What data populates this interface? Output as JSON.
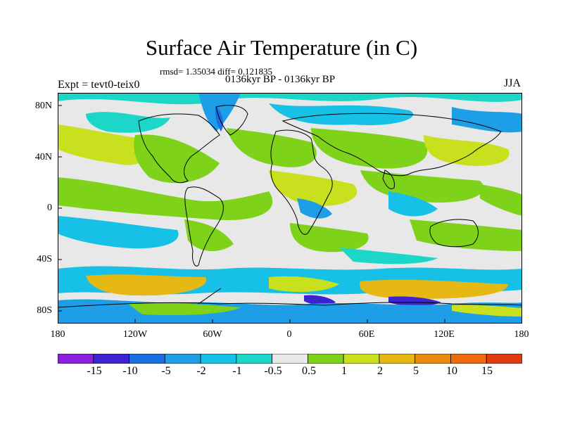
{
  "figure": {
    "title": "Surface Air Temperature (in C)",
    "stats_line": "rmsd= 1.35034 diff= 0.121835",
    "period_line": "0136kyr BP - 0136kyr BP",
    "expt_label": "Expt = tevt0-teix0",
    "season": "JJA"
  },
  "axes": {
    "x_ticks": [
      "180",
      "120W",
      "60W",
      "0",
      "60E",
      "120E",
      "180"
    ],
    "y_ticks": [
      "80N",
      "40N",
      "0",
      "40S",
      "80S"
    ]
  },
  "colorbar": {
    "colors": [
      "#8b1fe0",
      "#3c24d0",
      "#1c6ee0",
      "#1e9ee6",
      "#16c0e6",
      "#1cd6c8",
      "#e8e8e8",
      "#7ed21a",
      "#c8e01e",
      "#e6b814",
      "#ee8a0e",
      "#ee6a0e",
      "#e03a10"
    ],
    "labels": [
      "-15",
      "-10",
      "-5",
      "-2",
      "-1",
      "-0.5",
      "0.5",
      "1",
      "2",
      "5",
      "10",
      "15"
    ]
  },
  "legend_colors": {
    "ocean_background": "#e8e8e8",
    "coastline": "#000000"
  }
}
